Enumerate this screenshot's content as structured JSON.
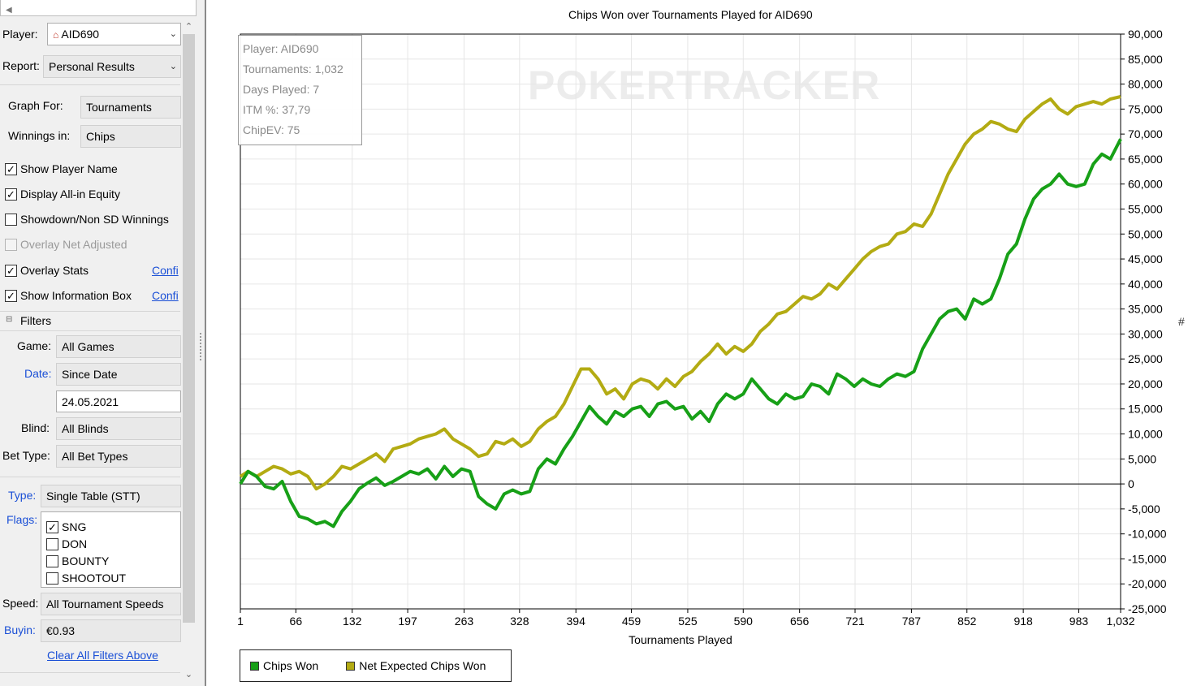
{
  "sidebar": {
    "player_label": "Player:",
    "player_value": "AID690",
    "report_label": "Report:",
    "report_value": "Personal Results",
    "graph_for_label": "Graph For:",
    "graph_for_value": "Tournaments",
    "winnings_label": "Winnings in:",
    "winnings_value": "Chips",
    "show_player_name": "Show Player Name",
    "display_allin": "Display All-in Equity",
    "showdown": "Showdown/Non SD Winnings",
    "overlay_net": "Overlay Net Adjusted",
    "overlay_stats": "Overlay Stats",
    "show_info_box": "Show Information Box",
    "config_link": "Confi",
    "filters_header": "Filters",
    "game_label": "Game:",
    "game_value": "All Games",
    "date_label": "Date:",
    "date_value": "Since Date",
    "date_input": "24.05.2021",
    "blind_label": "Blind:",
    "blind_value": "All Blinds",
    "bet_type_label": "Bet Type:",
    "bet_type_value": "All Bet Types",
    "type_label": "Type:",
    "type_value": "Single Table (STT)",
    "flags_label": "Flags:",
    "flags": [
      "SNG",
      "DON",
      "BOUNTY",
      "SHOOTOUT"
    ],
    "speed_label": "Speed:",
    "speed_value": "All Tournament Speeds",
    "buyin_label": "Buyin:",
    "buyin_value": "€0.93",
    "clear_filters": "Clear All Filters Above"
  },
  "info_box": {
    "player": "Player: AID690",
    "tournaments": "Tournaments: 1,032",
    "days": "Days Played: 7",
    "itm": "ITM %: 37,79",
    "chipev": "ChipEV: 75"
  },
  "watermark": "POKERTRACKER",
  "right_marker": "#",
  "colors": {
    "chips_won": "#17a017",
    "net_expected": "#b3ab13"
  },
  "chart_data": {
    "type": "line",
    "title": "Chips Won over Tournaments Played for AID690",
    "xlabel": "Tournaments Played",
    "ylabel": "",
    "xlim": [
      1,
      1032
    ],
    "ylim": [
      -25000,
      90000
    ],
    "x_ticks": [
      1,
      66,
      132,
      197,
      263,
      328,
      394,
      459,
      525,
      590,
      656,
      721,
      787,
      852,
      918,
      983,
      1032
    ],
    "y_ticks": [
      90000,
      85000,
      80000,
      75000,
      70000,
      65000,
      60000,
      55000,
      50000,
      45000,
      40000,
      35000,
      30000,
      25000,
      20000,
      15000,
      10000,
      5000,
      0,
      -5000,
      -10000,
      -15000,
      -20000,
      -25000
    ],
    "y_tick_labels": [
      "90,000",
      "85,000",
      "80,000",
      "75,000",
      "70,000",
      "65,000",
      "60,000",
      "55,000",
      "50,000",
      "45,000",
      "40,000",
      "35,000",
      "30,000",
      "25,000",
      "20,000",
      "15,000",
      "10,000",
      "5,000",
      "0",
      "-5,000",
      "-10,000",
      "-15,000",
      "-20,000",
      "-25,000"
    ],
    "legend_position": "bottom-left",
    "series": [
      {
        "name": "Chips Won",
        "x": [
          1,
          10,
          20,
          30,
          40,
          50,
          60,
          70,
          80,
          90,
          100,
          110,
          120,
          130,
          140,
          150,
          160,
          170,
          180,
          190,
          200,
          210,
          220,
          230,
          240,
          250,
          260,
          270,
          280,
          290,
          300,
          310,
          320,
          330,
          340,
          350,
          360,
          370,
          380,
          390,
          400,
          410,
          420,
          430,
          440,
          450,
          460,
          470,
          480,
          490,
          500,
          510,
          520,
          530,
          540,
          550,
          560,
          570,
          580,
          590,
          600,
          610,
          620,
          630,
          640,
          650,
          660,
          670,
          680,
          690,
          700,
          710,
          720,
          730,
          740,
          750,
          760,
          770,
          780,
          790,
          800,
          810,
          820,
          830,
          840,
          850,
          860,
          870,
          880,
          890,
          900,
          910,
          920,
          930,
          940,
          950,
          960,
          970,
          980,
          990,
          1000,
          1010,
          1020,
          1032
        ],
        "y": [
          0,
          2500,
          1500,
          -500,
          -1000,
          500,
          -3500,
          -6500,
          -7000,
          -8000,
          -7500,
          -8500,
          -5500,
          -3500,
          -1000,
          200,
          1200,
          -300,
          500,
          1500,
          2500,
          2000,
          3000,
          1000,
          3500,
          1500,
          3000,
          2500,
          -2500,
          -4000,
          -5000,
          -2000,
          -1200,
          -2000,
          -1500,
          3000,
          5000,
          4000,
          7000,
          9500,
          12500,
          15500,
          13500,
          12000,
          14500,
          13500,
          15000,
          15500,
          13500,
          16000,
          16500,
          15000,
          15500,
          13000,
          14500,
          12500,
          16000,
          18000,
          17000,
          18000,
          21000,
          19000,
          17000,
          16000,
          18000,
          17000,
          17500,
          20000,
          19500,
          18000,
          22000,
          21000,
          19500,
          21000,
          20000,
          19500,
          21000,
          22000,
          21500,
          22500,
          27000,
          30000,
          33000,
          34500,
          35000,
          33000,
          37000,
          36000,
          37000,
          41000,
          46000,
          48000,
          53000,
          57000,
          59000,
          60000,
          62000,
          60000,
          59500,
          60000,
          64000,
          66000,
          65000,
          69000
        ]
      },
      {
        "name": "Net Expected Chips Won",
        "x": [
          1,
          10,
          20,
          30,
          40,
          50,
          60,
          70,
          80,
          90,
          100,
          110,
          120,
          130,
          140,
          150,
          160,
          170,
          180,
          190,
          200,
          210,
          220,
          230,
          240,
          250,
          260,
          270,
          280,
          290,
          300,
          310,
          320,
          330,
          340,
          350,
          360,
          370,
          380,
          390,
          400,
          410,
          420,
          430,
          440,
          450,
          460,
          470,
          480,
          490,
          500,
          510,
          520,
          530,
          540,
          550,
          560,
          570,
          580,
          590,
          600,
          610,
          620,
          630,
          640,
          650,
          660,
          670,
          680,
          690,
          700,
          710,
          720,
          730,
          740,
          750,
          760,
          770,
          780,
          790,
          800,
          810,
          820,
          830,
          840,
          850,
          860,
          870,
          880,
          890,
          900,
          910,
          920,
          930,
          940,
          950,
          960,
          970,
          980,
          990,
          1000,
          1010,
          1020,
          1032
        ],
        "y": [
          1500,
          2500,
          1500,
          2500,
          3500,
          3000,
          2000,
          2500,
          1500,
          -1000,
          0,
          1500,
          3500,
          3000,
          4000,
          5000,
          6000,
          4500,
          7000,
          7500,
          8000,
          9000,
          9500,
          10000,
          11000,
          9000,
          8000,
          7000,
          5500,
          6000,
          8500,
          8000,
          9000,
          7500,
          8500,
          11000,
          12500,
          13500,
          16000,
          19500,
          23000,
          23000,
          21000,
          18000,
          19000,
          17000,
          20000,
          21000,
          20500,
          19000,
          21000,
          19500,
          21500,
          22500,
          24500,
          26000,
          28000,
          26000,
          27500,
          26500,
          28000,
          30500,
          32000,
          34000,
          34500,
          36000,
          37500,
          37000,
          38000,
          40000,
          39000,
          41000,
          43000,
          45000,
          46500,
          47500,
          48000,
          50000,
          50500,
          52000,
          51500,
          54000,
          58000,
          62000,
          65000,
          68000,
          70000,
          71000,
          72500,
          72000,
          71000,
          70500,
          73000,
          74500,
          76000,
          77000,
          75000,
          74000,
          75500,
          76000,
          76500,
          76000,
          77000,
          77500
        ]
      }
    ]
  }
}
